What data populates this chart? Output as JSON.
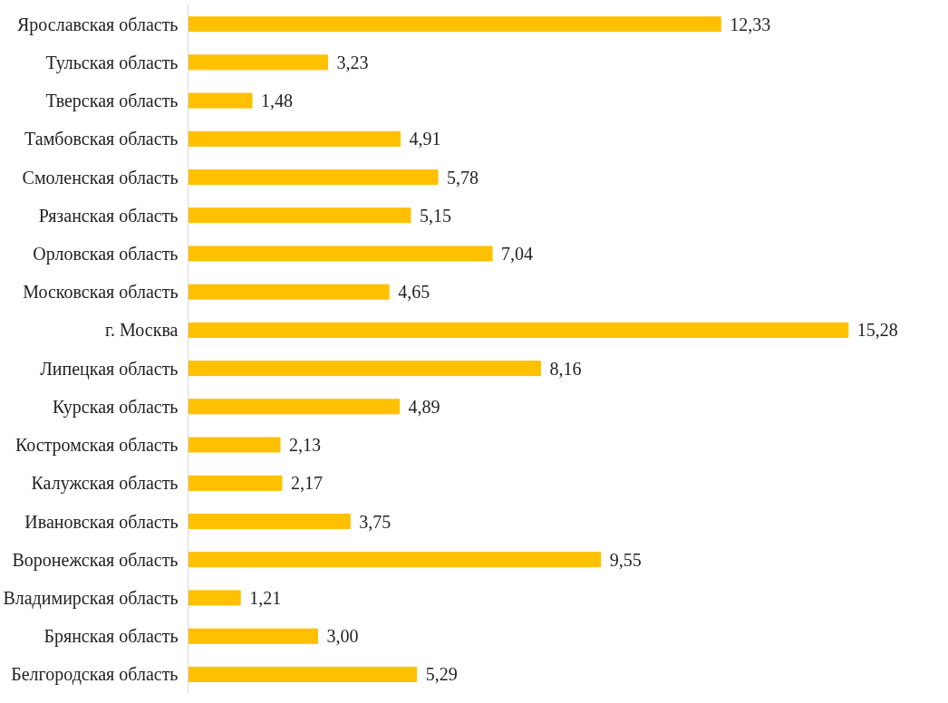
{
  "chart_data": {
    "type": "bar",
    "orientation": "horizontal",
    "categories": [
      "Ярославская область",
      "Тульская область",
      "Тверская область",
      "Тамбовская область",
      "Смоленская область",
      "Рязанская область",
      "Орловская область",
      "Московская область",
      "г. Москва",
      "Липецкая область",
      "Курская область",
      "Костромская область",
      "Калужская область",
      "Ивановская область",
      "Воронежская область",
      "Владимирская область",
      "Брянская область",
      "Белгородская область"
    ],
    "values": [
      12.33,
      3.23,
      1.48,
      4.91,
      5.78,
      5.15,
      7.04,
      4.65,
      15.28,
      8.16,
      4.89,
      2.13,
      2.17,
      3.75,
      9.55,
      1.21,
      3.0,
      5.29
    ],
    "value_labels": [
      "12,33",
      "3,23",
      "1,48",
      "4,91",
      "5,78",
      "5,15",
      "7,04",
      "4,65",
      "15,28",
      "8,16",
      "4,89",
      "2,13",
      "2,17",
      "3,75",
      "9,55",
      "1,21",
      "3,00",
      "5,29"
    ],
    "color": "#ffc000",
    "grid": false,
    "tick_labels": "y"
  }
}
